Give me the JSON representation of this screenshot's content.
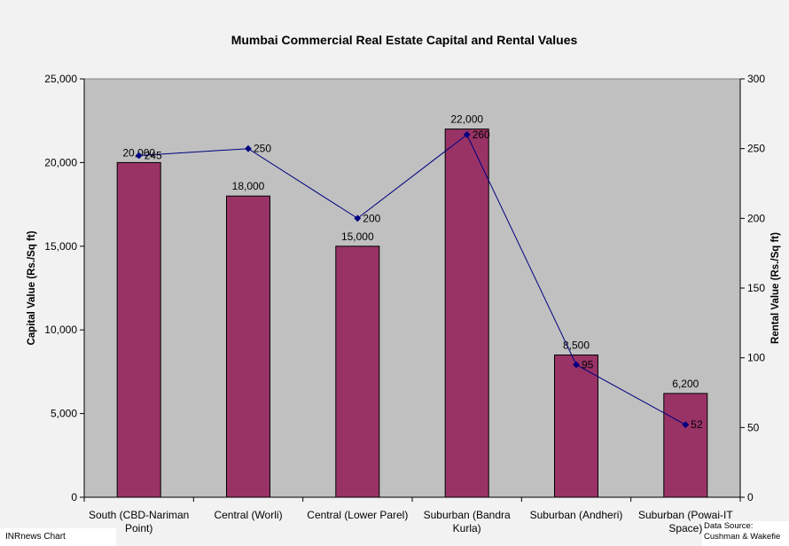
{
  "chart_data": {
    "type": "bar",
    "title": "Mumbai Commercial Real Estate Capital and Rental Values",
    "ylabel": "Capital Value (Rs./Sq ft)",
    "y2label": "Rental Value (Rs./Sq ft)",
    "ylim": [
      0,
      25000
    ],
    "y2lim": [
      0,
      300
    ],
    "yticks": [
      "0",
      "5,000",
      "10,000",
      "15,000",
      "20,000",
      "25,000"
    ],
    "y2ticks": [
      "0",
      "50",
      "100",
      "150",
      "200",
      "250",
      "300"
    ],
    "categories": [
      [
        "South (CBD-Nariman",
        "Point)"
      ],
      [
        "Central (Worli)"
      ],
      [
        "Central (Lower Parel)"
      ],
      [
        "Suburban (Bandra",
        "Kurla)"
      ],
      [
        "Suburban (Andheri)"
      ],
      [
        "Suburban (Powai-IT",
        "Space)"
      ]
    ],
    "series": [
      {
        "type": "bar",
        "axis": "left",
        "values": [
          20000,
          18000,
          15000,
          22000,
          8500,
          6200
        ],
        "labels": [
          "20,000",
          "18,000",
          "15,000",
          "22,000",
          "8,500",
          "6,200"
        ],
        "color": "#993366"
      },
      {
        "type": "line",
        "axis": "right",
        "values": [
          245,
          250,
          200,
          260,
          95,
          52
        ],
        "labels": [
          "245",
          "250",
          "200",
          "260",
          "95",
          "52"
        ],
        "color": "#000080"
      }
    ],
    "plot_background": "#c0c0c0",
    "grid": false,
    "legend": "none"
  },
  "footer": {
    "source_left": "INRnews Chart",
    "source_right_line1": "Data Source:",
    "source_right_line2": "Cushman & Wakefie"
  }
}
